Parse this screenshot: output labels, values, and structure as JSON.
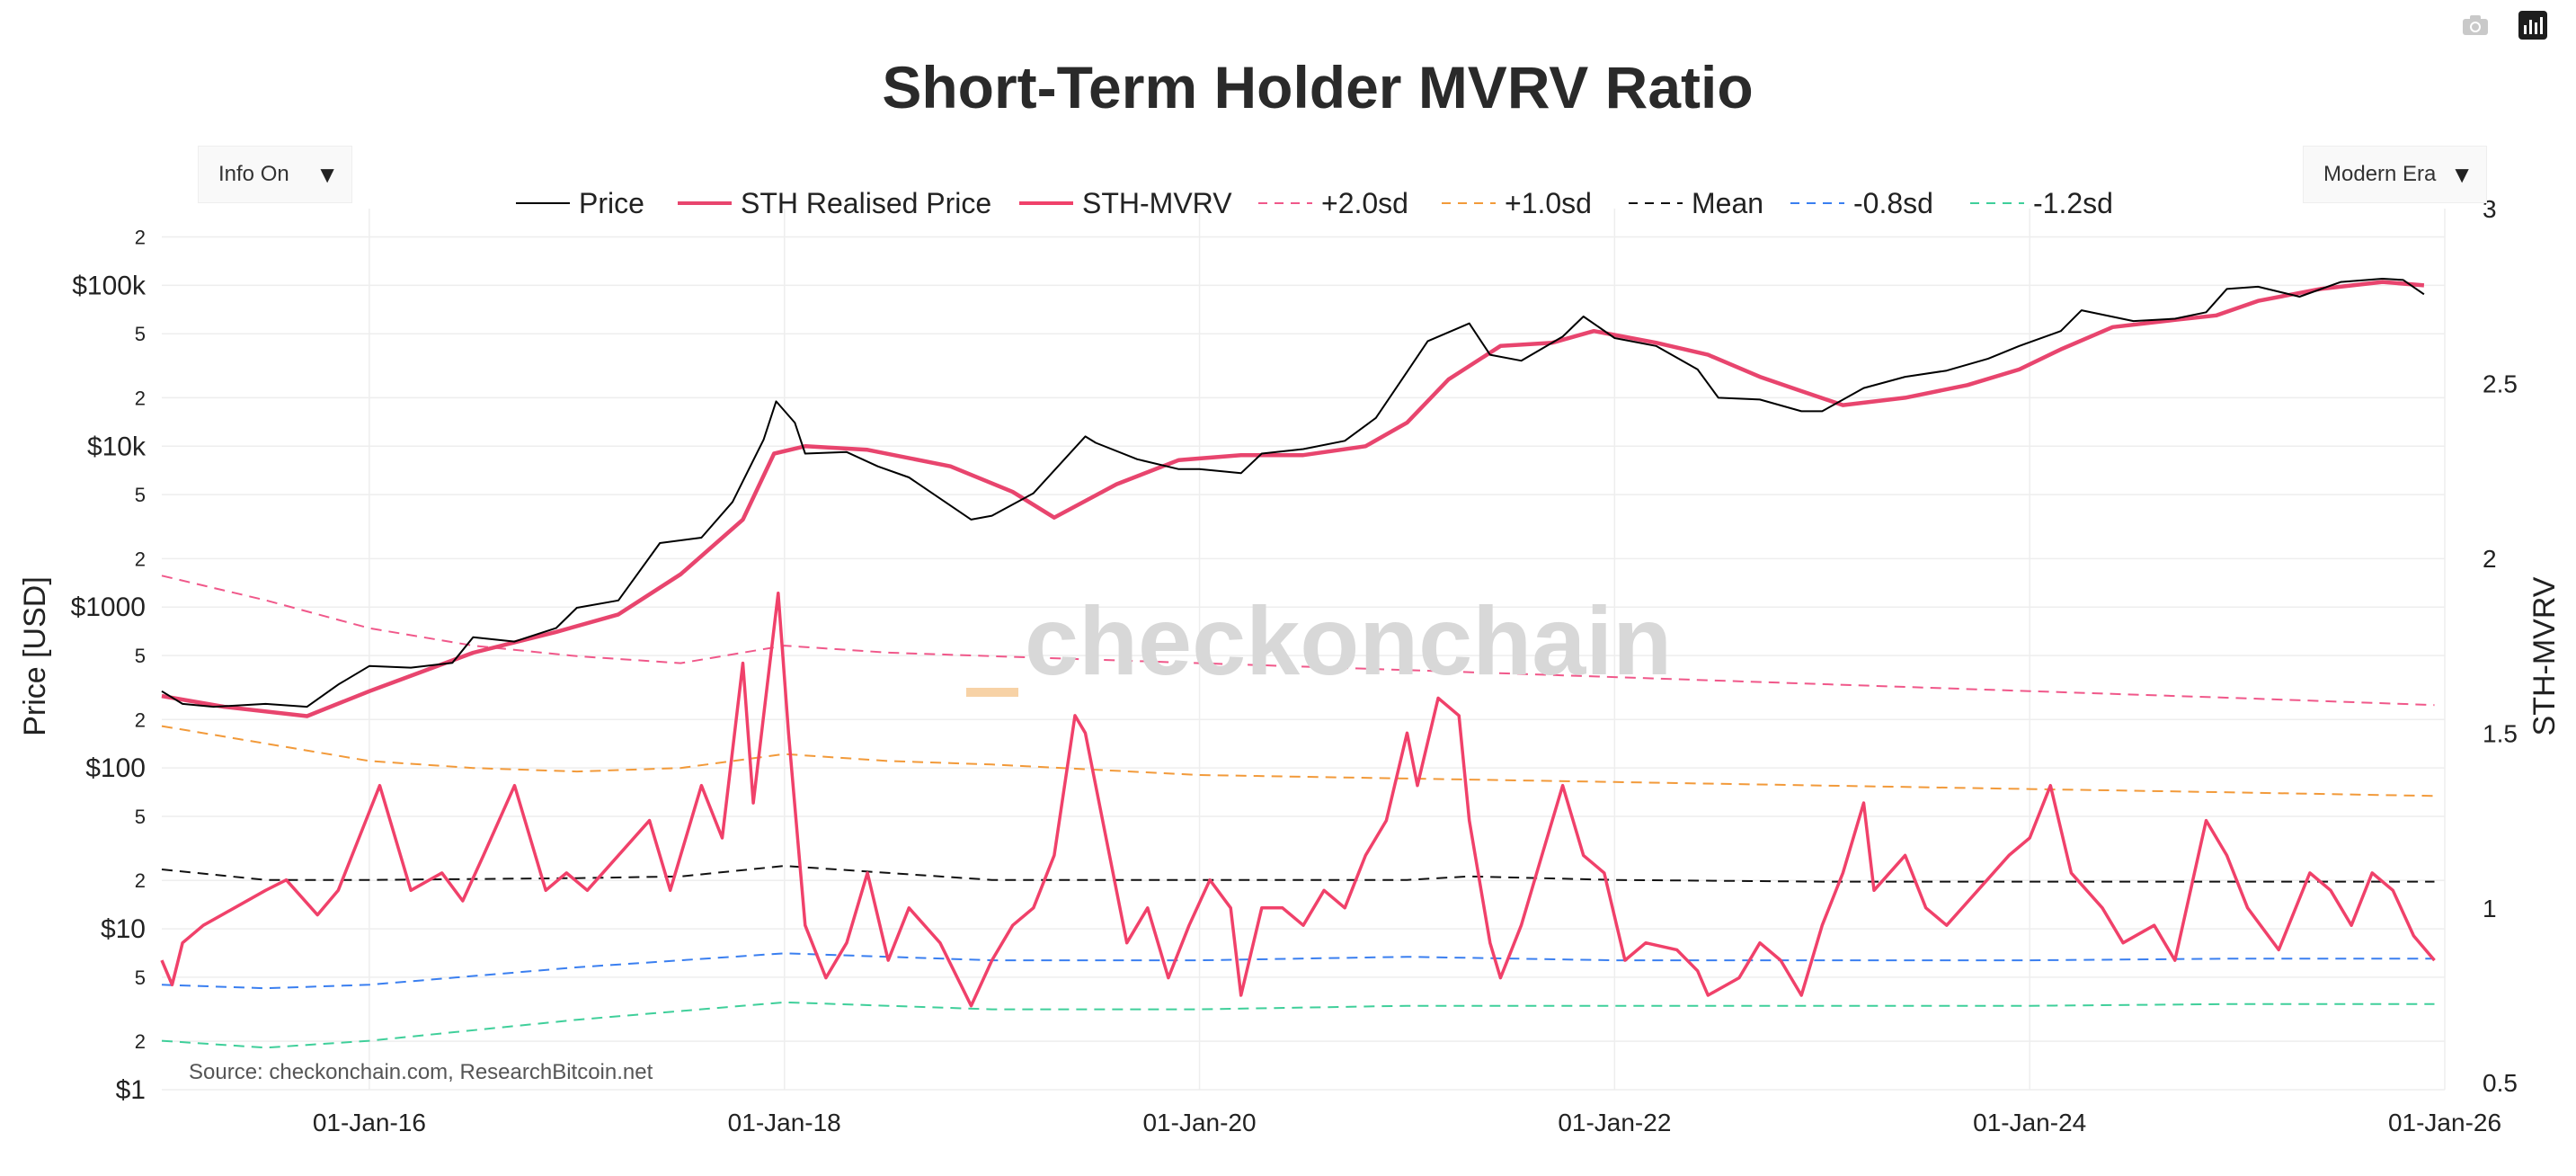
{
  "colors": {
    "price": "#000000",
    "realised": "#e8456e",
    "mvrv": "#f0416a",
    "plus2sd": "#f0588a",
    "plus1sd": "#f29a3a",
    "mean": "#111111",
    "minus08sd": "#3a7ff0",
    "minus12sd": "#3fcf9a",
    "grid": "#eeeeee",
    "watermark": "#d8d8d8",
    "watermark_dash": "#f7d2a6"
  },
  "controls": {
    "info_label": "Info On",
    "era_label": "Modern Era"
  },
  "icons": {
    "camera": "camera-icon",
    "chart": "bar-chart-icon"
  },
  "watermark": "checkonchain",
  "source": "Source: checkonchain.com, ResearchBitcoin.net",
  "chart_data": {
    "type": "line",
    "title": "Short-Term Holder MVRV Ratio",
    "ylabel_left": "Price [USD]",
    "ylabel_right": "STH-MVRV",
    "y_left_scale": "log",
    "y_left_range": [
      1,
      300000
    ],
    "y_right_range": [
      0.48,
      3.0
    ],
    "x_range": [
      "2015-01-01",
      "2025-12-31"
    ],
    "legend_position": "top",
    "legend": [
      "Price",
      "STH Realised Price",
      "STH-MVRV",
      "+2.0sd",
      "+1.0sd",
      "Mean",
      "-0.8sd",
      "-1.2sd"
    ],
    "x_ticks": [
      "01-Jan-16",
      "01-Jan-18",
      "01-Jan-20",
      "01-Jan-22",
      "01-Jan-24",
      "01-Jan-26"
    ],
    "y_left_ticks": [
      "$1",
      "2",
      "5",
      "$10",
      "2",
      "5",
      "$100",
      "2",
      "5",
      "$1000",
      "2",
      "5",
      "$10k",
      "2",
      "5",
      "$100k",
      "2"
    ],
    "y_right_ticks": [
      "0.5",
      "1",
      "1.5",
      "2",
      "2.5",
      "3"
    ],
    "price_series": {
      "name": "Price",
      "x": [
        2015.0,
        2015.1,
        2015.25,
        2015.5,
        2015.7,
        2015.85,
        2016.0,
        2016.2,
        2016.4,
        2016.5,
        2016.7,
        2016.9,
        2017.0,
        2017.2,
        2017.4,
        2017.6,
        2017.75,
        2017.9,
        2017.96,
        2018.05,
        2018.1,
        2018.3,
        2018.45,
        2018.6,
        2018.9,
        2019.0,
        2019.2,
        2019.45,
        2019.5,
        2019.7,
        2019.9,
        2020.0,
        2020.2,
        2020.3,
        2020.5,
        2020.7,
        2020.85,
        2021.0,
        2021.1,
        2021.3,
        2021.4,
        2021.55,
        2021.75,
        2021.85,
        2022.0,
        2022.2,
        2022.4,
        2022.5,
        2022.7,
        2022.9,
        2023.0,
        2023.2,
        2023.4,
        2023.6,
        2023.8,
        2023.95,
        2024.15,
        2024.25,
        2024.5,
        2024.7,
        2024.85,
        2024.95,
        2025.1,
        2025.3,
        2025.5,
        2025.7,
        2025.8,
        2025.9
      ],
      "values": [
        300,
        250,
        240,
        250,
        240,
        330,
        430,
        420,
        450,
        650,
        610,
        740,
        990,
        1100,
        2500,
        2700,
        4500,
        11000,
        19000,
        14000,
        9000,
        9200,
        7500,
        6400,
        3500,
        3700,
        5100,
        11500,
        10500,
        8300,
        7200,
        7200,
        6800,
        9000,
        9600,
        10800,
        15000,
        29000,
        45000,
        58000,
        37000,
        34000,
        48000,
        64000,
        47000,
        42000,
        30000,
        20000,
        19500,
        16500,
        16500,
        23000,
        27000,
        29500,
        35000,
        42000,
        52000,
        70000,
        60000,
        62000,
        68000,
        95000,
        98000,
        85000,
        105000,
        110000,
        108000,
        88000
      ]
    },
    "realised_series": {
      "name": "STH Realised Price",
      "x": [
        2015.0,
        2015.3,
        2015.7,
        2016.0,
        2016.5,
        2016.9,
        2017.2,
        2017.5,
        2017.8,
        2017.95,
        2018.1,
        2018.4,
        2018.8,
        2019.1,
        2019.3,
        2019.6,
        2019.9,
        2020.2,
        2020.5,
        2020.8,
        2021.0,
        2021.2,
        2021.45,
        2021.7,
        2021.9,
        2022.2,
        2022.45,
        2022.7,
        2022.9,
        2023.1,
        2023.4,
        2023.7,
        2023.95,
        2024.15,
        2024.4,
        2024.7,
        2024.9,
        2025.1,
        2025.4,
        2025.7,
        2025.9
      ],
      "values": [
        280,
        240,
        210,
        300,
        520,
        700,
        900,
        1600,
        3500,
        9000,
        10000,
        9500,
        7500,
        5200,
        3600,
        5800,
        8200,
        8800,
        8800,
        10000,
        14000,
        26000,
        42000,
        44000,
        52000,
        44000,
        37000,
        27000,
        22000,
        18000,
        20000,
        24000,
        30000,
        40000,
        55000,
        61000,
        65000,
        80000,
        95000,
        105000,
        100000
      ]
    },
    "mvrv_series": {
      "name": "STH-MVRV",
      "x": [
        2015.0,
        2015.05,
        2015.1,
        2015.2,
        2015.35,
        2015.5,
        2015.6,
        2015.75,
        2015.85,
        2015.95,
        2016.05,
        2016.2,
        2016.35,
        2016.45,
        2016.55,
        2016.7,
        2016.85,
        2016.95,
        2017.05,
        2017.2,
        2017.35,
        2017.45,
        2017.6,
        2017.7,
        2017.8,
        2017.85,
        2017.9,
        2017.97,
        2018.02,
        2018.1,
        2018.2,
        2018.3,
        2018.4,
        2018.5,
        2018.6,
        2018.75,
        2018.85,
        2018.9,
        2019.0,
        2019.1,
        2019.2,
        2019.3,
        2019.4,
        2019.45,
        2019.55,
        2019.65,
        2019.75,
        2019.85,
        2019.95,
        2020.05,
        2020.15,
        2020.2,
        2020.3,
        2020.4,
        2020.5,
        2020.6,
        2020.7,
        2020.8,
        2020.9,
        2021.0,
        2021.05,
        2021.15,
        2021.25,
        2021.3,
        2021.4,
        2021.45,
        2021.55,
        2021.65,
        2021.75,
        2021.85,
        2021.95,
        2022.05,
        2022.15,
        2022.3,
        2022.4,
        2022.45,
        2022.6,
        2022.7,
        2022.8,
        2022.9,
        2023.0,
        2023.1,
        2023.2,
        2023.25,
        2023.4,
        2023.5,
        2023.6,
        2023.75,
        2023.9,
        2024.0,
        2024.1,
        2024.2,
        2024.35,
        2024.45,
        2024.6,
        2024.7,
        2024.85,
        2024.95,
        2025.05,
        2025.2,
        2025.35,
        2025.45,
        2025.55,
        2025.65,
        2025.75,
        2025.85,
        2025.95
      ],
      "values": [
        0.85,
        0.78,
        0.9,
        0.95,
        1.0,
        1.05,
        1.08,
        0.98,
        1.05,
        1.2,
        1.35,
        1.05,
        1.1,
        1.02,
        1.15,
        1.35,
        1.05,
        1.1,
        1.05,
        1.15,
        1.25,
        1.05,
        1.35,
        1.2,
        1.7,
        1.3,
        1.55,
        1.9,
        1.5,
        0.95,
        0.8,
        0.9,
        1.1,
        0.85,
        1.0,
        0.9,
        0.78,
        0.72,
        0.85,
        0.95,
        1.0,
        1.15,
        1.55,
        1.5,
        1.2,
        0.9,
        1.0,
        0.8,
        0.95,
        1.08,
        1.0,
        0.75,
        1.0,
        1.0,
        0.95,
        1.05,
        1.0,
        1.15,
        1.25,
        1.5,
        1.35,
        1.6,
        1.55,
        1.25,
        0.9,
        0.8,
        0.95,
        1.15,
        1.35,
        1.15,
        1.1,
        0.85,
        0.9,
        0.88,
        0.82,
        0.75,
        0.8,
        0.9,
        0.85,
        0.75,
        0.95,
        1.1,
        1.3,
        1.05,
        1.15,
        1.0,
        0.95,
        1.05,
        1.15,
        1.2,
        1.35,
        1.1,
        1.0,
        0.9,
        0.95,
        0.85,
        1.25,
        1.15,
        1.0,
        0.88,
        1.1,
        1.05,
        0.95,
        1.1,
        1.05,
        0.92,
        0.85
      ]
    },
    "plus2sd_series": {
      "name": "+2.0sd",
      "x": [
        2015.0,
        2015.5,
        2016.0,
        2016.5,
        2017.0,
        2017.5,
        2018.0,
        2018.5,
        2019.0,
        2020.0,
        2021.0,
        2022.0,
        2023.0,
        2024.0,
        2025.0,
        2025.95
      ],
      "values": [
        1.95,
        1.88,
        1.8,
        1.75,
        1.72,
        1.7,
        1.75,
        1.73,
        1.72,
        1.7,
        1.68,
        1.66,
        1.64,
        1.62,
        1.6,
        1.58
      ]
    },
    "plus1sd_series": {
      "name": "+1.0sd",
      "x": [
        2015.0,
        2015.5,
        2016.0,
        2016.5,
        2017.0,
        2017.5,
        2018.0,
        2018.5,
        2019.0,
        2020.0,
        2021.0,
        2022.0,
        2023.0,
        2024.0,
        2025.0,
        2025.95
      ],
      "values": [
        1.52,
        1.47,
        1.42,
        1.4,
        1.39,
        1.4,
        1.44,
        1.42,
        1.41,
        1.38,
        1.37,
        1.36,
        1.35,
        1.34,
        1.33,
        1.32
      ]
    },
    "mean_series": {
      "name": "Mean",
      "x": [
        2015.0,
        2015.5,
        2016.0,
        2017.0,
        2017.5,
        2018.0,
        2018.5,
        2019.0,
        2020.0,
        2021.0,
        2021.3,
        2022.0,
        2023.0,
        2024.0,
        2025.0,
        2025.95
      ],
      "values": [
        1.11,
        1.08,
        1.08,
        1.085,
        1.09,
        1.12,
        1.1,
        1.08,
        1.08,
        1.08,
        1.09,
        1.08,
        1.075,
        1.075,
        1.075,
        1.075
      ]
    },
    "minus08sd_series": {
      "name": "-0.8sd",
      "x": [
        2015.0,
        2015.5,
        2016.0,
        2017.0,
        2018.0,
        2018.5,
        2019.0,
        2020.0,
        2021.0,
        2022.0,
        2023.0,
        2024.0,
        2025.0,
        2025.95
      ],
      "values": [
        0.78,
        0.77,
        0.78,
        0.83,
        0.87,
        0.86,
        0.85,
        0.85,
        0.86,
        0.85,
        0.85,
        0.85,
        0.855,
        0.855
      ]
    },
    "minus12sd_series": {
      "name": "-1.2sd",
      "x": [
        2015.0,
        2015.5,
        2016.0,
        2017.0,
        2018.0,
        2018.5,
        2019.0,
        2020.0,
        2021.0,
        2022.0,
        2023.0,
        2024.0,
        2025.0,
        2025.95
      ],
      "values": [
        0.62,
        0.6,
        0.62,
        0.68,
        0.73,
        0.72,
        0.71,
        0.71,
        0.72,
        0.72,
        0.72,
        0.72,
        0.725,
        0.725
      ]
    }
  }
}
